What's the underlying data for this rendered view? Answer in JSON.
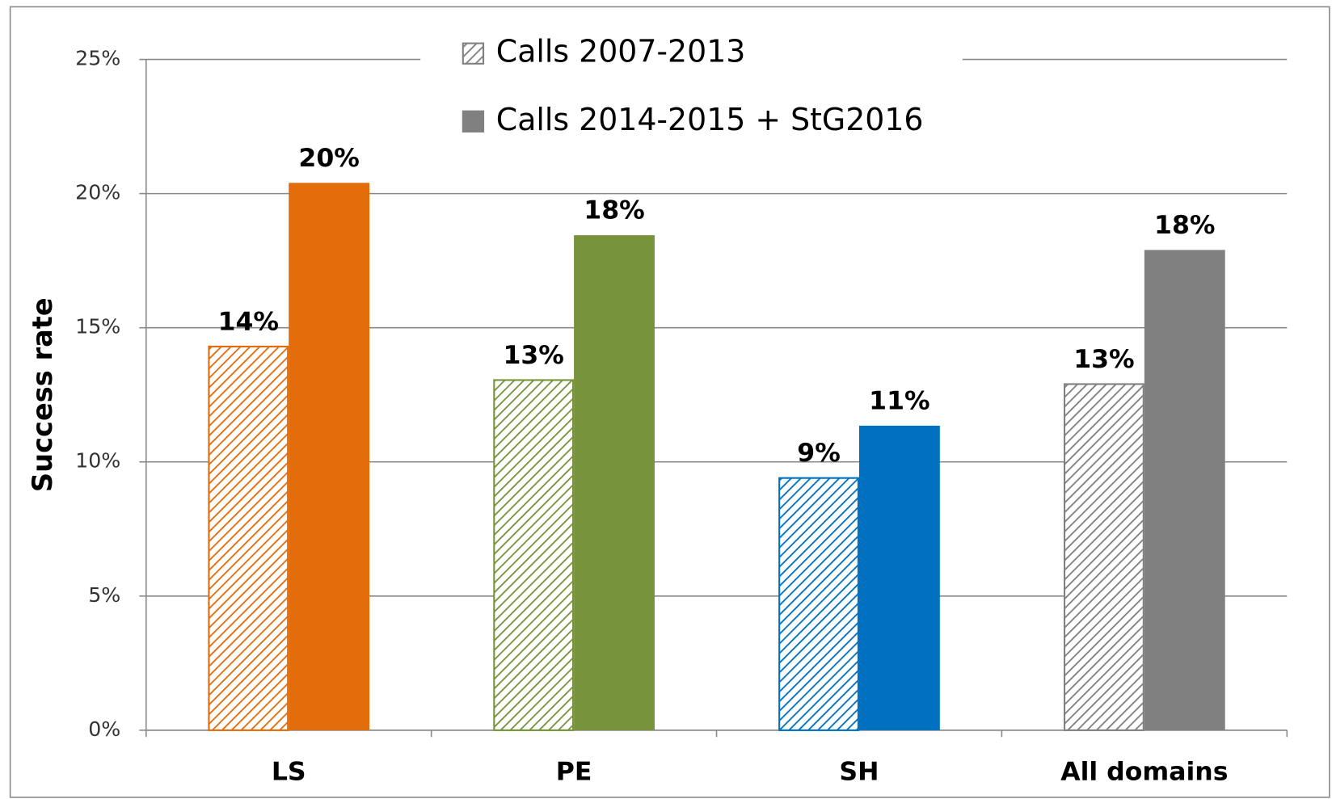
{
  "chart_data": {
    "type": "bar",
    "y_label": "Success rate",
    "categories": [
      "LS",
      "PE",
      "SH",
      "All domains"
    ],
    "category_colors": [
      "#e36c0a",
      "#77933c",
      "#0070c0",
      "#808080"
    ],
    "series": [
      {
        "name": "Calls 2007-2013",
        "color": "#808080",
        "pattern": "hatched",
        "values": [
          14.3,
          13.05,
          9.4,
          12.9
        ],
        "value_labels": [
          "14%",
          "13%",
          "9%",
          "13%"
        ]
      },
      {
        "name": "Calls 2014-2015 + StG2016",
        "color": "#808080",
        "pattern": "solid",
        "values": [
          20.4,
          18.45,
          11.35,
          17.9
        ],
        "value_labels": [
          "20%",
          "18%",
          "11%",
          "18%"
        ]
      }
    ],
    "ylim": [
      0,
      25
    ],
    "yticks": [
      {
        "value": 0,
        "label": "0%"
      },
      {
        "value": 5,
        "label": "5%"
      },
      {
        "value": 10,
        "label": "10%"
      },
      {
        "value": 15,
        "label": "15%"
      },
      {
        "value": 20,
        "label": "20%"
      },
      {
        "value": 25,
        "label": "25%"
      }
    ],
    "grid": true,
    "legend": "top"
  }
}
